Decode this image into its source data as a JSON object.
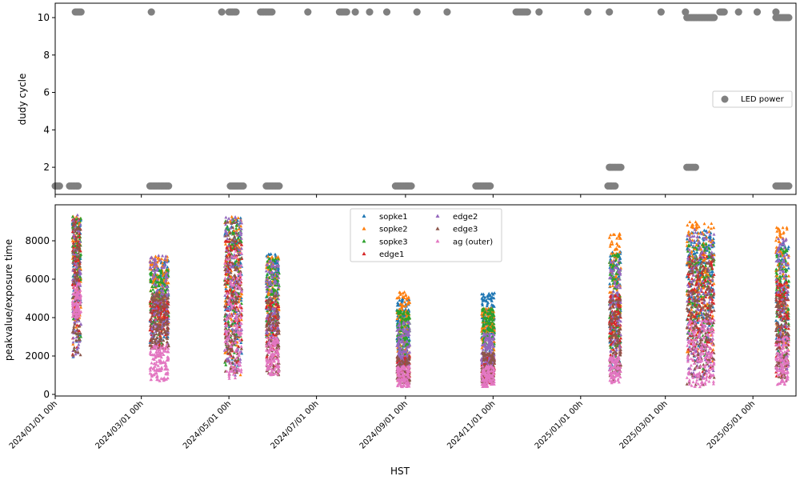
{
  "chart_data": [
    {
      "type": "scatter",
      "ylabel": "dudy cycle",
      "xlim": [
        "2024-01-01",
        "2025-05-31"
      ],
      "ylim": [
        0.55,
        10.77
      ],
      "yticks": [
        2,
        4,
        6,
        8,
        10
      ],
      "legend": {
        "placement": "center-right",
        "entries": [
          "LED power"
        ]
      },
      "marker": "circle",
      "color": "#808080",
      "series": [
        {
          "name": "LED power",
          "segments": [
            [
              "2024-01-01",
              "2024-01-04",
              1.0
            ],
            [
              "2024-01-11",
              "2024-01-17",
              1.0
            ],
            [
              "2024-01-15",
              "2024-01-19",
              10.3
            ],
            [
              "2024-03-08",
              "2024-03-08",
              10.3
            ],
            [
              "2024-03-07",
              "2024-03-20",
              1.0
            ],
            [
              "2024-04-26",
              "2024-04-26",
              10.3
            ],
            [
              "2024-05-01",
              "2024-05-06",
              10.3
            ],
            [
              "2024-05-02",
              "2024-05-11",
              1.0
            ],
            [
              "2024-05-23",
              "2024-05-31",
              10.3
            ],
            [
              "2024-05-27",
              "2024-06-05",
              1.0
            ],
            [
              "2024-06-25",
              "2024-06-25",
              10.3
            ],
            [
              "2024-07-17",
              "2024-07-22",
              10.3
            ],
            [
              "2024-07-28",
              "2024-07-28",
              10.3
            ],
            [
              "2024-08-07",
              "2024-08-07",
              10.3
            ],
            [
              "2024-08-19",
              "2024-08-19",
              10.3
            ],
            [
              "2024-08-25",
              "2024-09-05",
              1.0
            ],
            [
              "2024-09-09",
              "2024-09-09",
              10.3
            ],
            [
              "2024-09-30",
              "2024-09-30",
              10.3
            ],
            [
              "2024-10-20",
              "2024-10-30",
              1.0
            ],
            [
              "2024-11-17",
              "2024-11-25",
              10.3
            ],
            [
              "2024-12-03",
              "2024-12-03",
              10.3
            ],
            [
              "2025-01-06",
              "2025-01-06",
              10.3
            ],
            [
              "2025-01-21",
              "2025-01-21",
              10.3
            ],
            [
              "2025-01-20",
              "2025-01-25",
              1.0
            ],
            [
              "2025-01-21",
              "2025-01-29",
              2.0
            ],
            [
              "2025-02-26",
              "2025-02-26",
              10.3
            ],
            [
              "2025-03-15",
              "2025-03-15",
              10.3
            ],
            [
              "2025-03-16",
              "2025-04-04",
              10.0
            ],
            [
              "2025-03-16",
              "2025-03-22",
              2.0
            ],
            [
              "2025-04-08",
              "2025-04-11",
              10.3
            ],
            [
              "2025-04-21",
              "2025-04-21",
              10.3
            ],
            [
              "2025-05-04",
              "2025-05-04",
              10.3
            ],
            [
              "2025-05-17",
              "2025-05-17",
              10.3
            ],
            [
              "2025-05-17",
              "2025-05-26",
              10.0
            ],
            [
              "2025-05-17",
              "2025-05-26",
              1.0
            ]
          ]
        }
      ]
    },
    {
      "type": "scatter",
      "xlabel": "HST",
      "ylabel": "peakvalue/exposure time",
      "xlim": [
        "2024-01-01",
        "2025-05-31"
      ],
      "ylim": [
        -83,
        9875
      ],
      "yticks": [
        0,
        2000,
        4000,
        6000,
        8000
      ],
      "xticks": [
        "2024/01/01 00h",
        "2024/03/01 00h",
        "2024/05/01 00h",
        "2024/07/01 00h",
        "2024/09/01 00h",
        "2024/11/01 00h",
        "2025/01/01 00h",
        "2025/03/01 00h",
        "2025/05/01 00h"
      ],
      "xtick_dates": [
        "2024-01-01",
        "2024-03-01",
        "2024-05-01",
        "2024-07-01",
        "2024-09-01",
        "2024-11-01",
        "2025-01-01",
        "2025-03-01",
        "2025-05-01"
      ],
      "marker": "triangle",
      "legend": {
        "placement": "upper-center",
        "columns": 2
      },
      "series": [
        {
          "name": "sopke1",
          "color": "#1f77b4"
        },
        {
          "name": "sopke2",
          "color": "#ff7f0e"
        },
        {
          "name": "sopke3",
          "color": "#2ca02c"
        },
        {
          "name": "edge1",
          "color": "#d62728"
        },
        {
          "name": "edge2",
          "color": "#9467bd"
        },
        {
          "name": "edge3",
          "color": "#8c564b"
        },
        {
          "name": "ag (outer)",
          "color": "#e377c2"
        }
      ],
      "bursts": [
        {
          "start": "2024-01-13",
          "end": "2024-01-19",
          "ranges": [
            [
              1800,
              9300
            ],
            [
              1800,
              9300
            ],
            [
              1800,
              9300
            ],
            [
              1800,
              9200
            ],
            [
              2000,
              9400
            ],
            [
              1800,
              9100
            ],
            [
              4000,
              5800
            ]
          ]
        },
        {
          "start": "2024-03-07",
          "end": "2024-03-20",
          "ranges": [
            [
              2500,
              7000
            ],
            [
              2500,
              7200
            ],
            [
              2500,
              6500
            ],
            [
              2000,
              5000
            ],
            [
              2600,
              7300
            ],
            [
              2400,
              5300
            ],
            [
              700,
              2600
            ]
          ]
        },
        {
          "start": "2024-04-28",
          "end": "2024-05-10",
          "ranges": [
            [
              1000,
              9200
            ],
            [
              1000,
              9300
            ],
            [
              1000,
              9200
            ],
            [
              1000,
              8000
            ],
            [
              1000,
              9300
            ],
            [
              1000,
              9100
            ],
            [
              800,
              7500
            ]
          ]
        },
        {
          "start": "2024-05-27",
          "end": "2024-06-05",
          "ranges": [
            [
              2500,
              7400
            ],
            [
              2500,
              7200
            ],
            [
              2500,
              7100
            ],
            [
              1000,
              5000
            ],
            [
              2500,
              7000
            ],
            [
              1000,
              5200
            ],
            [
              1000,
              3000
            ]
          ]
        },
        {
          "start": "2024-08-26",
          "end": "2024-09-04",
          "ranges": [
            [
              1500,
              5000
            ],
            [
              1500,
              5400
            ],
            [
              1500,
              4400
            ],
            [
              600,
              2000
            ],
            [
              1500,
              3800
            ],
            [
              600,
              2000
            ],
            [
              400,
              1500
            ]
          ]
        },
        {
          "start": "2024-10-24",
          "end": "2024-11-02",
          "ranges": [
            [
              2000,
              5300
            ],
            [
              2000,
              4500
            ],
            [
              1800,
              4500
            ],
            [
              500,
              2000
            ],
            [
              1500,
              3200
            ],
            [
              500,
              2200
            ],
            [
              400,
              1500
            ]
          ]
        },
        {
          "start": "2025-01-21",
          "end": "2025-01-29",
          "ranges": [
            [
              1000,
              7500
            ],
            [
              1000,
              8400
            ],
            [
              1000,
              7400
            ],
            [
              700,
              5200
            ],
            [
              1000,
              7000
            ],
            [
              700,
              5000
            ],
            [
              600,
              2000
            ]
          ]
        },
        {
          "start": "2025-03-16",
          "end": "2025-04-04",
          "ranges": [
            [
              1500,
              8600
            ],
            [
              1500,
              9000
            ],
            [
              1200,
              8000
            ],
            [
              800,
              7400
            ],
            [
              800,
              8700
            ],
            [
              500,
              7200
            ],
            [
              400,
              3900
            ]
          ]
        },
        {
          "start": "2025-05-17",
          "end": "2025-05-26",
          "ranges": [
            [
              1500,
              8000
            ],
            [
              1500,
              8700
            ],
            [
              1500,
              7700
            ],
            [
              800,
              6000
            ],
            [
              1200,
              8300
            ],
            [
              700,
              5200
            ],
            [
              500,
              3000
            ]
          ]
        }
      ]
    }
  ]
}
